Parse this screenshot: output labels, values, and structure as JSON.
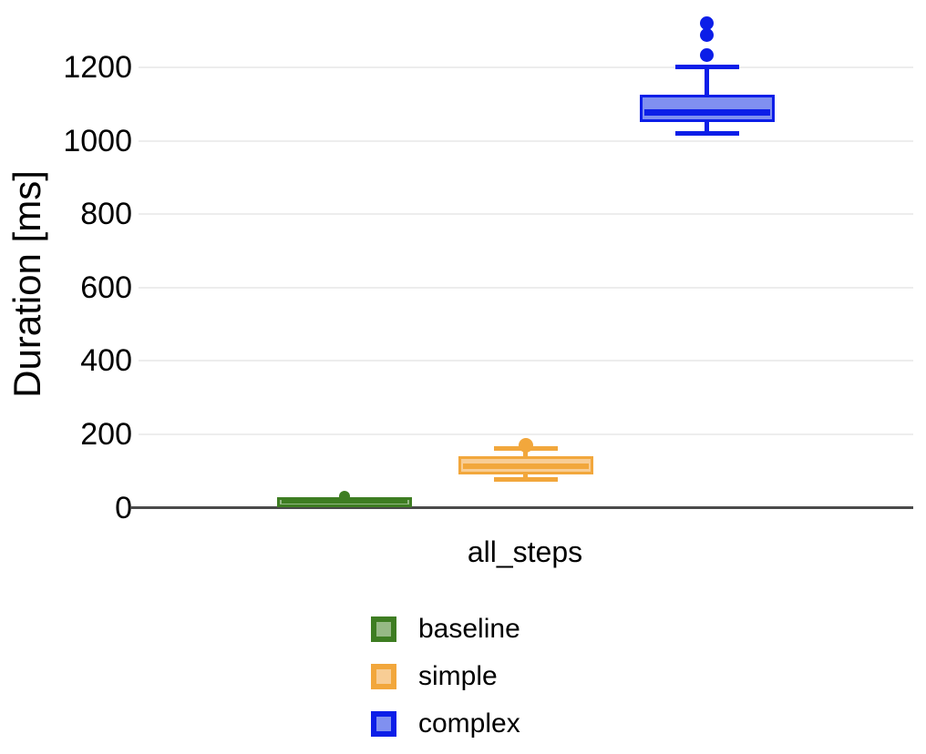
{
  "chart_data": {
    "type": "boxplot",
    "title": "",
    "category": "all_steps",
    "ylabel": "Duration [ms]",
    "ylim": [
      0,
      1340
    ],
    "yticks": [
      0,
      200,
      400,
      600,
      800,
      1000,
      1200
    ],
    "grid": "horizontal",
    "legend_position": "bottom-center",
    "axis_color": "#4a4a4a",
    "gridline_color": "#ededed",
    "text_color": "#000000",
    "series": [
      {
        "name": "baseline",
        "stroke": "#3E7D22",
        "fill": "#96B985",
        "min": 7,
        "q1": 10,
        "median": 16,
        "q3": 22,
        "max": 25,
        "outliers": [
          32
        ]
      },
      {
        "name": "simple",
        "stroke": "#F2A73C",
        "fill": "#F8CD95",
        "min": 77,
        "q1": 97,
        "median": 114,
        "q3": 134,
        "max": 161,
        "outliers": [
          171
        ]
      },
      {
        "name": "complex",
        "stroke": "#0C1EE8",
        "fill": "#8090F0",
        "min": 1019,
        "q1": 1059,
        "median": 1078,
        "q3": 1119,
        "max": 1202,
        "outliers": [
          1232,
          1287,
          1319
        ]
      }
    ]
  }
}
